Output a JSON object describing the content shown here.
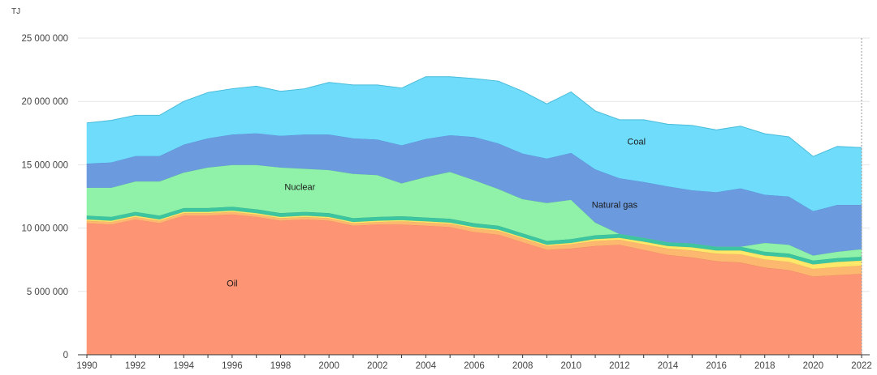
{
  "chart_data": {
    "type": "area",
    "stacked": true,
    "unit": "TJ",
    "x": [
      1990,
      1991,
      1992,
      1993,
      1994,
      1995,
      1996,
      1997,
      1998,
      1999,
      2000,
      2001,
      2002,
      2003,
      2004,
      2005,
      2006,
      2007,
      2008,
      2009,
      2010,
      2011,
      2012,
      2013,
      2014,
      2015,
      2016,
      2017,
      2018,
      2019,
      2020,
      2021,
      2022
    ],
    "xticks": [
      1990,
      1992,
      1994,
      1996,
      1998,
      2000,
      2002,
      2004,
      2006,
      2008,
      2010,
      2012,
      2014,
      2016,
      2018,
      2020,
      2022
    ],
    "yticks": [
      0,
      5000000,
      10000000,
      15000000,
      20000000,
      25000000
    ],
    "ytick_labels": [
      "0",
      "5 000 000",
      "10 000 000",
      "15 000 000",
      "20 000 000",
      "25 000 000"
    ],
    "ylim": [
      0,
      25000000
    ],
    "series": [
      {
        "name": "Oil",
        "label": "Oil",
        "label_at": [
          1996,
          5400000
        ],
        "color": "#fd9474",
        "stroke": "#e07a5c",
        "values": [
          10400000,
          10300000,
          10700000,
          10400000,
          11000000,
          11000000,
          11100000,
          10900000,
          10600000,
          10700000,
          10600000,
          10200000,
          10300000,
          10300000,
          10200000,
          10100000,
          9700000,
          9500000,
          8900000,
          8300000,
          8400000,
          8600000,
          8700000,
          8300000,
          7900000,
          7700000,
          7400000,
          7300000,
          6900000,
          6700000,
          6200000,
          6300000,
          6400000
        ]
      },
      {
        "name": "Series 2",
        "label": "",
        "color": "#fdb870",
        "stroke": "#e09a55",
        "values": [
          200000,
          200000,
          200000,
          200000,
          200000,
          200000,
          200000,
          200000,
          200000,
          200000,
          200000,
          200000,
          200000,
          250000,
          250000,
          250000,
          300000,
          300000,
          300000,
          300000,
          350000,
          400000,
          400000,
          450000,
          500000,
          550000,
          600000,
          650000,
          650000,
          650000,
          600000,
          650000,
          650000
        ]
      },
      {
        "name": "Series 3",
        "label": "",
        "color": "#fde86a",
        "stroke": "#d8c24a",
        "values": [
          100000,
          100000,
          100000,
          100000,
          100000,
          100000,
          100000,
          100000,
          100000,
          100000,
          100000,
          100000,
          100000,
          100000,
          100000,
          100000,
          100000,
          100000,
          100000,
          100000,
          100000,
          150000,
          150000,
          200000,
          200000,
          250000,
          250000,
          300000,
          300000,
          350000,
          350000,
          400000,
          400000
        ]
      },
      {
        "name": "Series 4",
        "label": "",
        "color": "#3cc5a0",
        "stroke": "#2aa284",
        "values": [
          300000,
          300000,
          300000,
          300000,
          300000,
          300000,
          300000,
          300000,
          300000,
          300000,
          300000,
          300000,
          300000,
          300000,
          300000,
          300000,
          300000,
          300000,
          300000,
          300000,
          300000,
          300000,
          300000,
          300000,
          300000,
          300000,
          300000,
          300000,
          300000,
          300000,
          300000,
          300000,
          300000
        ]
      },
      {
        "name": "Nuclear",
        "label": "Nuclear",
        "label_at": [
          1998.8,
          13000000
        ],
        "color": "#90f2a8",
        "stroke": "#66cc84",
        "values": [
          2200000,
          2300000,
          2400000,
          2700000,
          2800000,
          3200000,
          3300000,
          3500000,
          3600000,
          3400000,
          3400000,
          3500000,
          3300000,
          2600000,
          3200000,
          3700000,
          3400000,
          2900000,
          2700000,
          3000000,
          3100000,
          1000000,
          0,
          0,
          0,
          0,
          0,
          0,
          700000,
          700000,
          400000,
          500000,
          600000
        ]
      },
      {
        "name": "Natural gas",
        "label": "Natural gas",
        "label_at": [
          2011.8,
          11600000
        ],
        "color": "#6b9ade",
        "stroke": "#4f7cc4",
        "values": [
          1900000,
          2000000,
          2000000,
          2000000,
          2200000,
          2300000,
          2400000,
          2500000,
          2500000,
          2700000,
          2800000,
          2800000,
          2800000,
          3000000,
          3000000,
          2900000,
          3400000,
          3600000,
          3600000,
          3500000,
          3700000,
          4200000,
          4400000,
          4400000,
          4400000,
          4200000,
          4300000,
          4600000,
          3800000,
          3800000,
          3500000,
          3700000,
          3500000
        ]
      },
      {
        "name": "Coal",
        "label": "Coal",
        "label_at": [
          2012.7,
          16600000
        ],
        "color": "#6fdcfc",
        "stroke": "#4bbcd9",
        "values": [
          3200000,
          3300000,
          3200000,
          3200000,
          3400000,
          3600000,
          3600000,
          3700000,
          3500000,
          3600000,
          4100000,
          4200000,
          4300000,
          4500000,
          4900000,
          4600000,
          4600000,
          4900000,
          4900000,
          4300000,
          4800000,
          4600000,
          4600000,
          4900000,
          4900000,
          5100000,
          4900000,
          4900000,
          4800000,
          4700000,
          4300000,
          4600000,
          4500000
        ]
      }
    ]
  }
}
